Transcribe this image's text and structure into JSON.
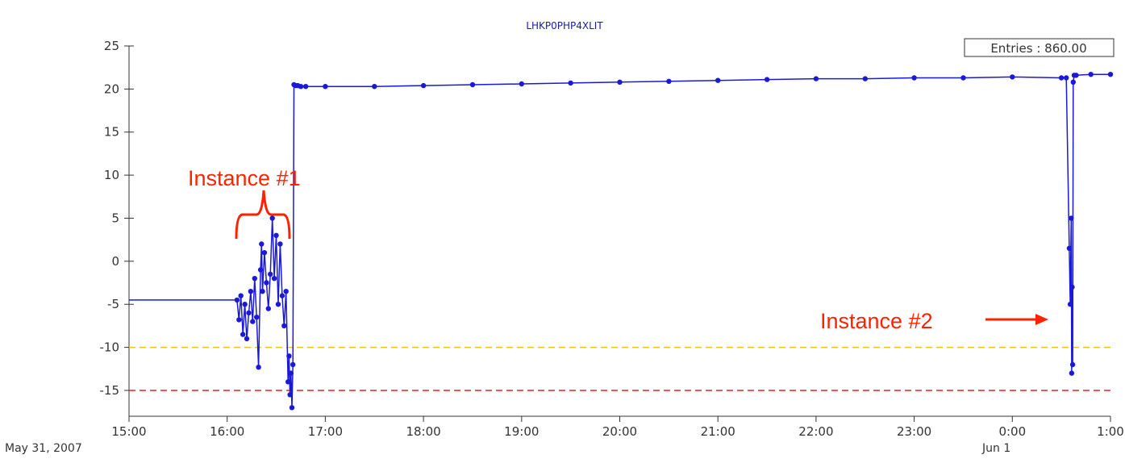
{
  "chart_data": {
    "type": "line",
    "title": "LHKP0PHP4XLIT",
    "legend": "Entries : 860.00",
    "ylim": [
      -18,
      25
    ],
    "y_ticks": [
      "25",
      "20",
      "15",
      "10",
      "5",
      "0",
      "-5",
      "-10",
      "-15"
    ],
    "x_range_hours": [
      15,
      25
    ],
    "x_ticks": [
      "15:00",
      "16:00",
      "17:00",
      "18:00",
      "19:00",
      "20:00",
      "21:00",
      "22:00",
      "23:00",
      "0:00",
      "1:00"
    ],
    "date_labels": {
      "start": "May 31, 2007",
      "next_day": "Jun 1"
    },
    "thresholds": [
      {
        "value": -10,
        "color": "#e8c31c"
      },
      {
        "value": -15,
        "color": "#d9262c"
      }
    ],
    "series": [
      {
        "color": "#1a1ad6",
        "x": [
          15.0,
          15.5,
          16.0,
          16.1,
          16.12,
          16.14,
          16.16,
          16.18,
          16.2,
          16.22,
          16.24,
          16.26,
          16.28,
          16.3,
          16.32,
          16.34,
          16.35,
          16.36,
          16.38,
          16.4,
          16.42,
          16.44,
          16.46,
          16.48,
          16.5,
          16.52,
          16.54,
          16.56,
          16.58,
          16.6,
          16.62,
          16.63,
          16.64,
          16.65,
          16.66,
          16.67,
          16.68,
          16.7,
          16.72,
          16.75,
          16.8,
          17.0,
          17.5,
          18.0,
          18.5,
          19.0,
          19.5,
          20.0,
          20.5,
          21.0,
          21.5,
          22.0,
          22.5,
          23.0,
          23.5,
          24.0,
          24.5,
          24.55,
          24.58,
          24.59,
          24.6,
          24.605,
          24.61,
          24.615,
          24.62,
          24.63,
          24.65,
          24.8,
          25.0
        ],
        "y": [
          -4.5,
          -4.5,
          -4.5,
          -4.5,
          -6.8,
          -4.0,
          -8.5,
          -5.0,
          -9.0,
          -6.0,
          -3.5,
          -7.0,
          -2.0,
          -6.5,
          -12.3,
          -1.0,
          2.0,
          -3.5,
          1.0,
          -2.5,
          -5.5,
          -1.5,
          5.0,
          -2.0,
          3.0,
          -5.0,
          2.0,
          -4.0,
          -7.5,
          -3.5,
          -14.0,
          -11.0,
          -15.5,
          -13.0,
          -17.0,
          -12.0,
          20.5,
          20.4,
          20.4,
          20.3,
          20.3,
          20.3,
          20.3,
          20.4,
          20.5,
          20.6,
          20.7,
          20.8,
          20.9,
          21.0,
          21.1,
          21.2,
          21.2,
          21.3,
          21.3,
          21.4,
          21.3,
          21.3,
          1.5,
          -5.0,
          5.0,
          -13.0,
          -3.0,
          -12.0,
          20.8,
          21.6,
          21.6,
          21.7,
          21.7
        ]
      }
    ],
    "annotations": [
      {
        "text": "Instance #1"
      },
      {
        "text": "Instance #2"
      }
    ]
  }
}
